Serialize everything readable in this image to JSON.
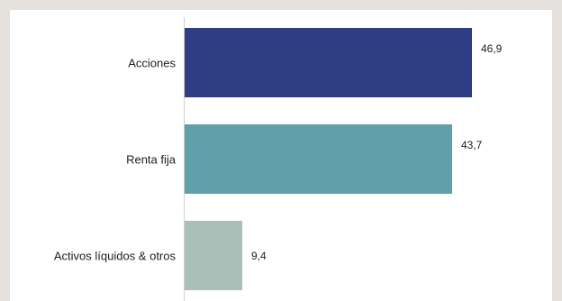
{
  "chart_data": {
    "type": "bar",
    "orientation": "horizontal",
    "categories": [
      "Acciones",
      "Renta fija",
      "Activos líquidos & otros"
    ],
    "values": [
      46.9,
      43.7,
      9.4
    ],
    "value_labels": [
      "46,9",
      "43,7",
      "9,4"
    ],
    "colors": [
      "#2e3d84",
      "#5fa0ab",
      "#a9bfb8"
    ],
    "title": "",
    "xlabel": "",
    "ylabel": "",
    "xlim": [
      0,
      46.9
    ],
    "grid": false,
    "legend": "none"
  }
}
